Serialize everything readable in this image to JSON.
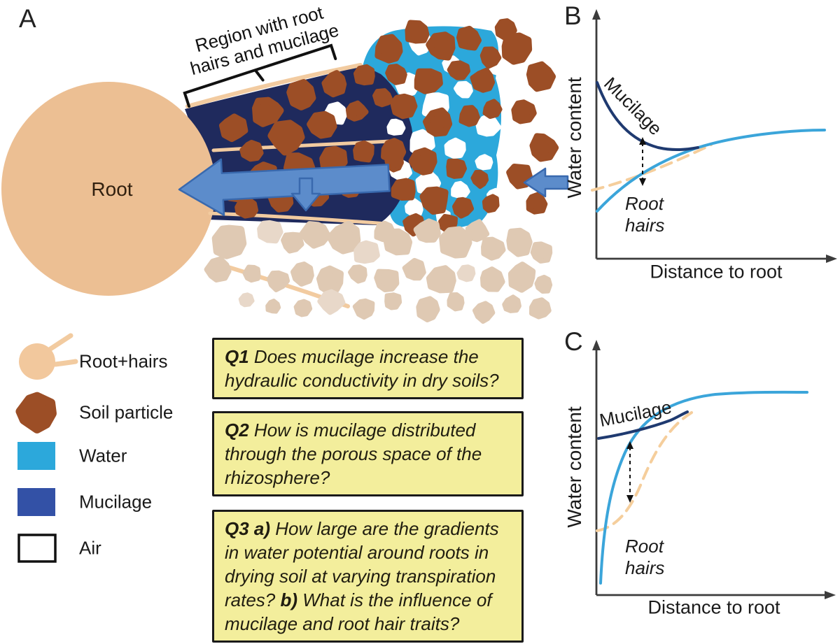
{
  "figure": {
    "panel_a_label": "A",
    "panel_b_label": "B",
    "panel_c_label": "C"
  },
  "panel_a": {
    "root_label": "Root",
    "region_annotation_line1": "Region with root",
    "region_annotation_line2": "hairs and mucilage"
  },
  "panel_b": {
    "y_axis_label": "Water content",
    "x_axis_label": "Distance to root",
    "mucilage_curve_label": "Mucilage",
    "root_hairs_curve_label": "Root hairs"
  },
  "panel_c": {
    "y_axis_label": "Water content",
    "x_axis_label": "Distance to root",
    "mucilage_curve_label": "Mucilage",
    "root_hairs_curve_label": "Root hairs"
  },
  "legend": {
    "items": [
      {
        "icon": "root-with-hairs-icon",
        "label": "Root+hairs"
      },
      {
        "icon": "soil-particle-icon",
        "label": "Soil particle"
      },
      {
        "icon": "water-swatch-icon",
        "label": "Water"
      },
      {
        "icon": "mucilage-swatch-icon",
        "label": "Mucilage"
      },
      {
        "icon": "air-swatch-icon",
        "label": "Air"
      }
    ]
  },
  "questions": [
    {
      "segments": [
        {
          "bold": true,
          "text": "Q1 "
        },
        {
          "bold": false,
          "text": "Does mucilage increase the hydraulic conductivity in dry soils?"
        }
      ]
    },
    {
      "segments": [
        {
          "bold": true,
          "text": "Q2 "
        },
        {
          "bold": false,
          "text": "How is mucilage distributed through the porous space of the rhizosphere?"
        }
      ]
    },
    {
      "segments": [
        {
          "bold": true,
          "text": "Q3 a) "
        },
        {
          "bold": false,
          "text": "How large are the gradients in water potential around roots in drying soil at varying transpiration rates? "
        },
        {
          "bold": true,
          "text": "b) "
        },
        {
          "bold": false,
          "text": "What is the influence of mucilage and root hair traits?"
        }
      ]
    }
  ],
  "colors": {
    "water": "#2CA8DB",
    "mucilage_region": "#1F2A5D",
    "mucilage_legend": "#3351A6",
    "soil_particle": "#9C4E26",
    "root": "#ECBF93",
    "root_hair": "#F2CBA0",
    "dry_particle": "#DFC9B3",
    "flow_arrow": "#5C8CCB",
    "question_box_fill": "#F3EE9C",
    "curve_mucilage": "#1F3A70",
    "curve_water": "#3BA5DA",
    "curve_root_hairs": "#F5CE9C"
  }
}
